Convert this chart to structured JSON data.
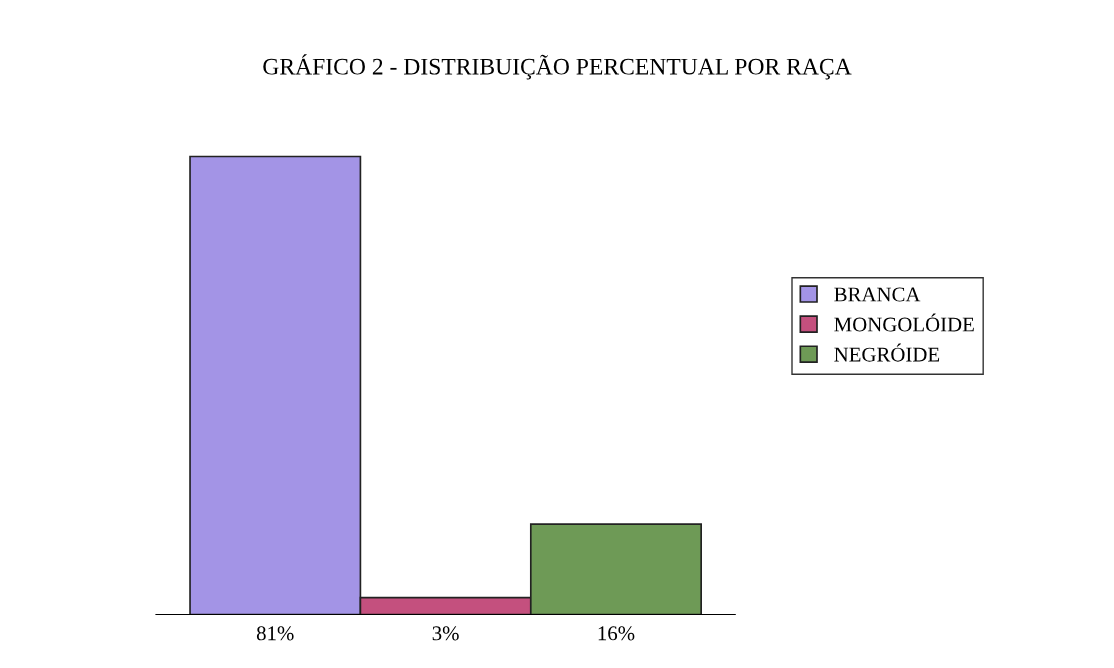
{
  "chart_data": {
    "type": "bar",
    "title": "GRÁFICO 2 - DISTRIBUIÇÃO PERCENTUAL POR RAÇA",
    "categories": [
      null,
      null,
      null
    ],
    "stacked": true,
    "series": [
      {
        "name": "BRANCA",
        "color": "#a394e6",
        "values": [
          81,
          null,
          null
        ],
        "value_labels": [
          "81%",
          null,
          null
        ]
      },
      {
        "name": "MONGOLÓIDE",
        "color": "#c4507e",
        "values": [
          null,
          3,
          null
        ],
        "value_labels": [
          null,
          "3%",
          null
        ]
      },
      {
        "name": "NEGRÓIDE",
        "color": "#6e9a56",
        "values": [
          null,
          null,
          16
        ],
        "value_labels": [
          null,
          null,
          "16%"
        ]
      }
    ],
    "grid": false,
    "legend": "right"
  }
}
